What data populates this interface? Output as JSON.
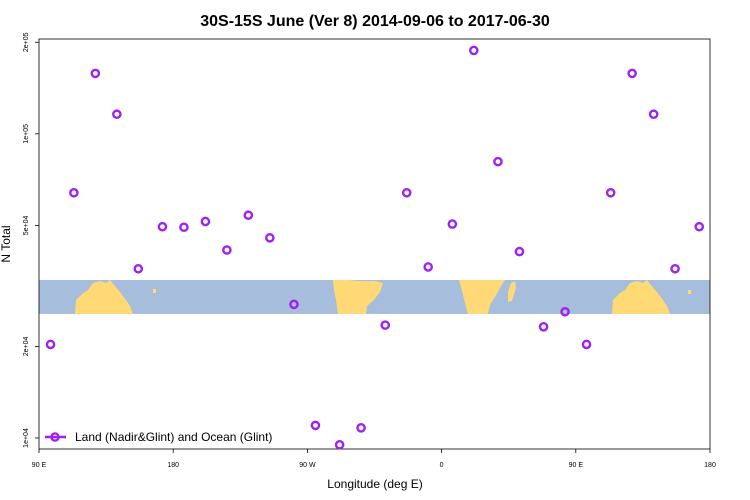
{
  "chart_data": {
    "type": "scatter",
    "title": "30S-15S June (Ver 8)   2014-09-06 to 2017-06-30",
    "xlabel": "Longitude (deg E)",
    "ylabel": "N Total",
    "x_scale": "linear",
    "y_scale": "log",
    "xlim": [
      90,
      340
    ],
    "ylim": [
      9200,
      205000
    ],
    "x_ticks": [
      {
        "value": 90,
        "label": "90 E"
      },
      {
        "value": 140,
        "label": "180"
      },
      {
        "value": 190,
        "label": "90 W"
      },
      {
        "value": 240,
        "label": "0"
      },
      {
        "value": 290,
        "label": "90 E"
      },
      {
        "value": 340,
        "label": "180"
      }
    ],
    "y_ticks": [
      {
        "value": 10000,
        "label": "1e+04"
      },
      {
        "value": 20000,
        "label": "2e+04"
      },
      {
        "value": 50000,
        "label": "5e+04"
      },
      {
        "value": 100000,
        "label": "1e+05"
      },
      {
        "value": 200000,
        "label": "2e+05"
      }
    ],
    "legend": {
      "position": "bottom-left",
      "label": "Land (Nadir&Glint) and Ocean (Glint)"
    },
    "colors": {
      "marker": "#a020f0",
      "ocean": "#a6bddb",
      "land": "#fed976"
    },
    "series": [
      {
        "name": "Land (Nadir&Glint) and Ocean (Glint)",
        "points": [
          {
            "x": 94.3,
            "y": 20300
          },
          {
            "x": 103,
            "y": 64000
          },
          {
            "x": 111,
            "y": 158000
          },
          {
            "x": 119,
            "y": 116000
          },
          {
            "x": 127,
            "y": 36000
          },
          {
            "x": 136,
            "y": 49500
          },
          {
            "x": 144,
            "y": 49300
          },
          {
            "x": 152,
            "y": 51500
          },
          {
            "x": 160,
            "y": 41500
          },
          {
            "x": 168,
            "y": 54000
          },
          {
            "x": 176,
            "y": 45500
          },
          {
            "x": 185,
            "y": 27500
          },
          {
            "x": 193,
            "y": 11000
          },
          {
            "x": 202,
            "y": 9500
          },
          {
            "x": 210,
            "y": 10800
          },
          {
            "x": 219,
            "y": 23500
          },
          {
            "x": 227,
            "y": 64000
          },
          {
            "x": 235,
            "y": 36500
          },
          {
            "x": 244,
            "y": 50500
          },
          {
            "x": 252,
            "y": 188000
          },
          {
            "x": 261,
            "y": 81000
          },
          {
            "x": 269,
            "y": 41000
          },
          {
            "x": 278,
            "y": 23200
          },
          {
            "x": 286,
            "y": 26000
          },
          {
            "x": 294,
            "y": 20300
          },
          {
            "x": 303,
            "y": 64000
          },
          {
            "x": 311,
            "y": 158000
          },
          {
            "x": 319,
            "y": 116000
          },
          {
            "x": 327,
            "y": 36000
          },
          {
            "x": 336,
            "y": 49500
          }
        ]
      }
    ]
  }
}
